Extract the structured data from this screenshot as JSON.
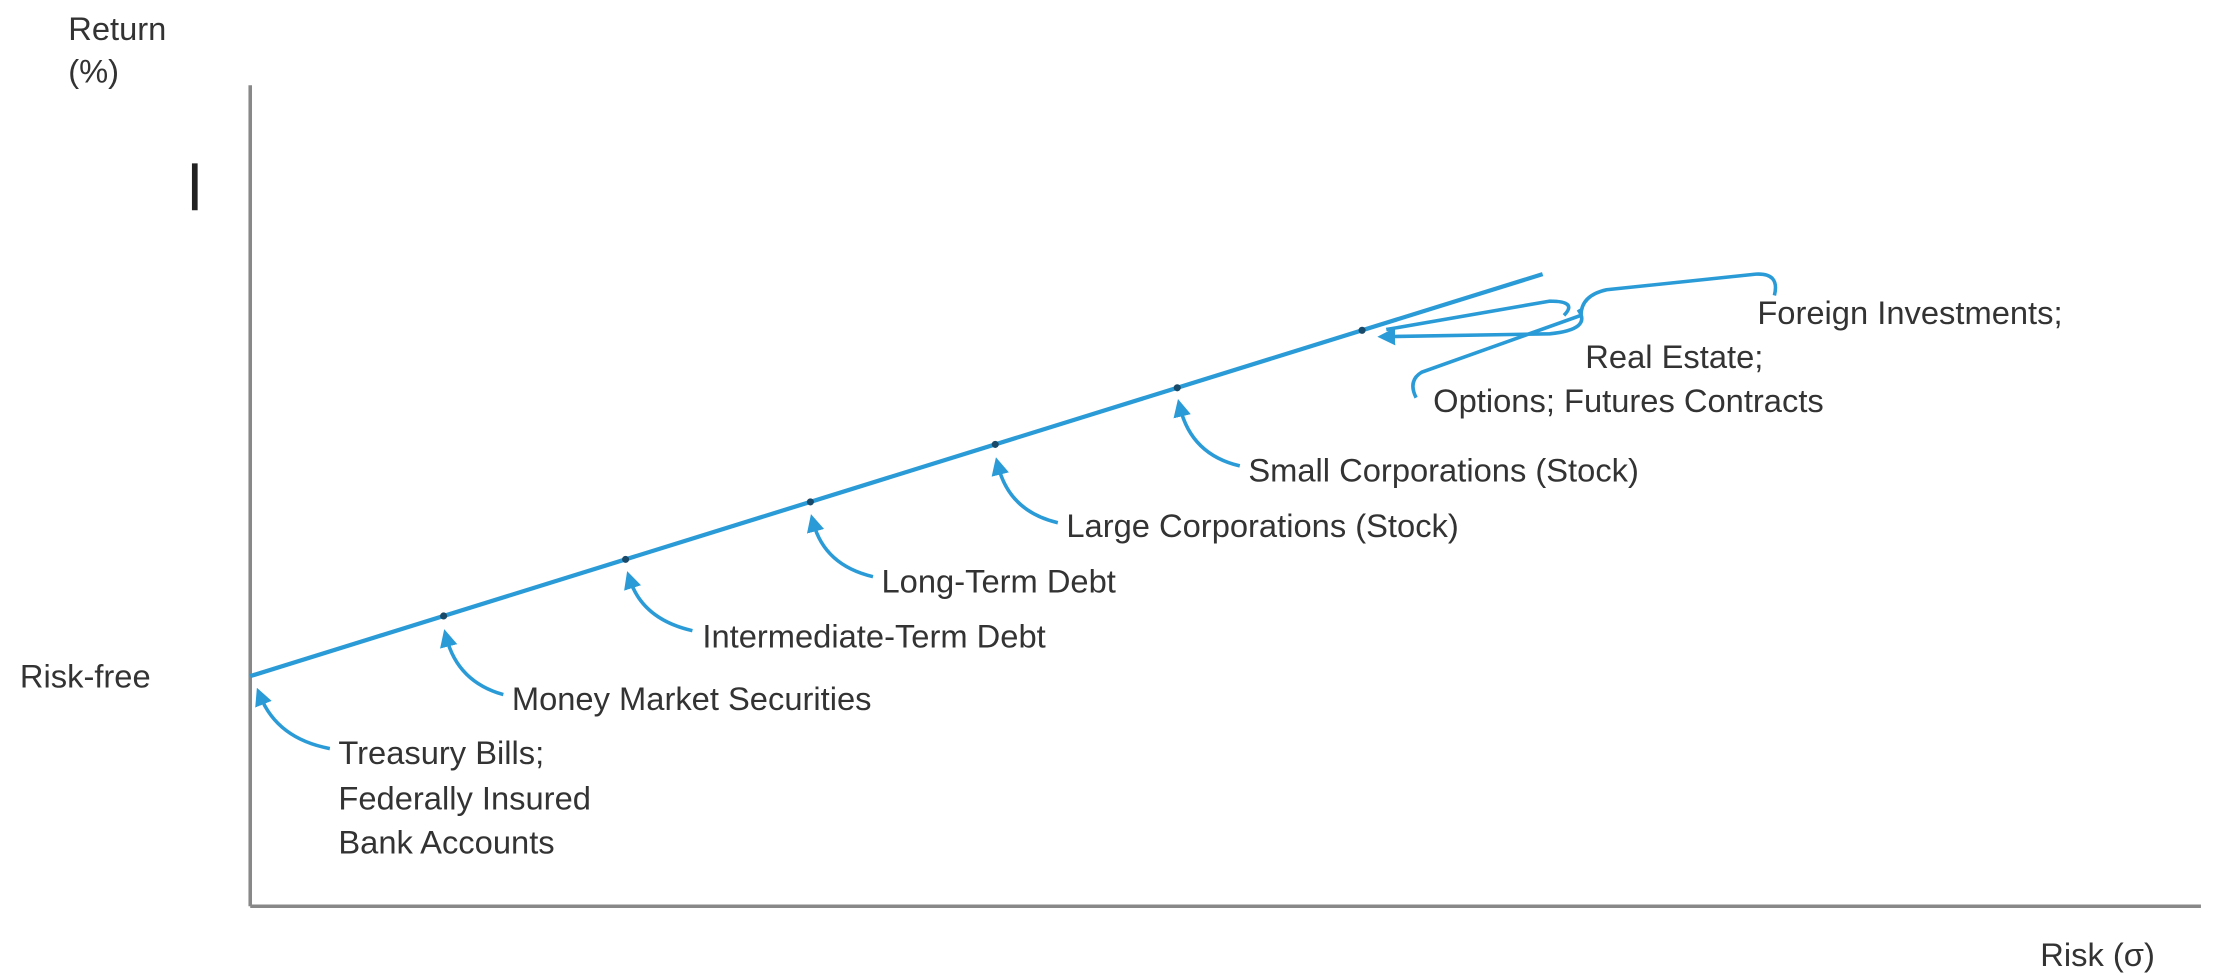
{
  "axes": {
    "y_label": [
      "Return",
      "(%)"
    ],
    "x_label": "Risk (σ)",
    "y_marker": "Risk-free"
  },
  "labels": [
    {
      "lines": [
        "Treasury Bills;",
        "Federally Insured",
        "Bank Accounts"
      ]
    },
    {
      "lines": [
        "Money Market Securities"
      ]
    },
    {
      "lines": [
        "Intermediate-Term Debt"
      ]
    },
    {
      "lines": [
        "Long-Term Debt"
      ]
    },
    {
      "lines": [
        "Large Corporations (Stock)"
      ]
    },
    {
      "lines": [
        "Small Corporations (Stock)"
      ]
    },
    {
      "lines": [
        "Foreign Investments;",
        "Real Estate;",
        "Options; Futures Contracts"
      ]
    }
  ]
}
